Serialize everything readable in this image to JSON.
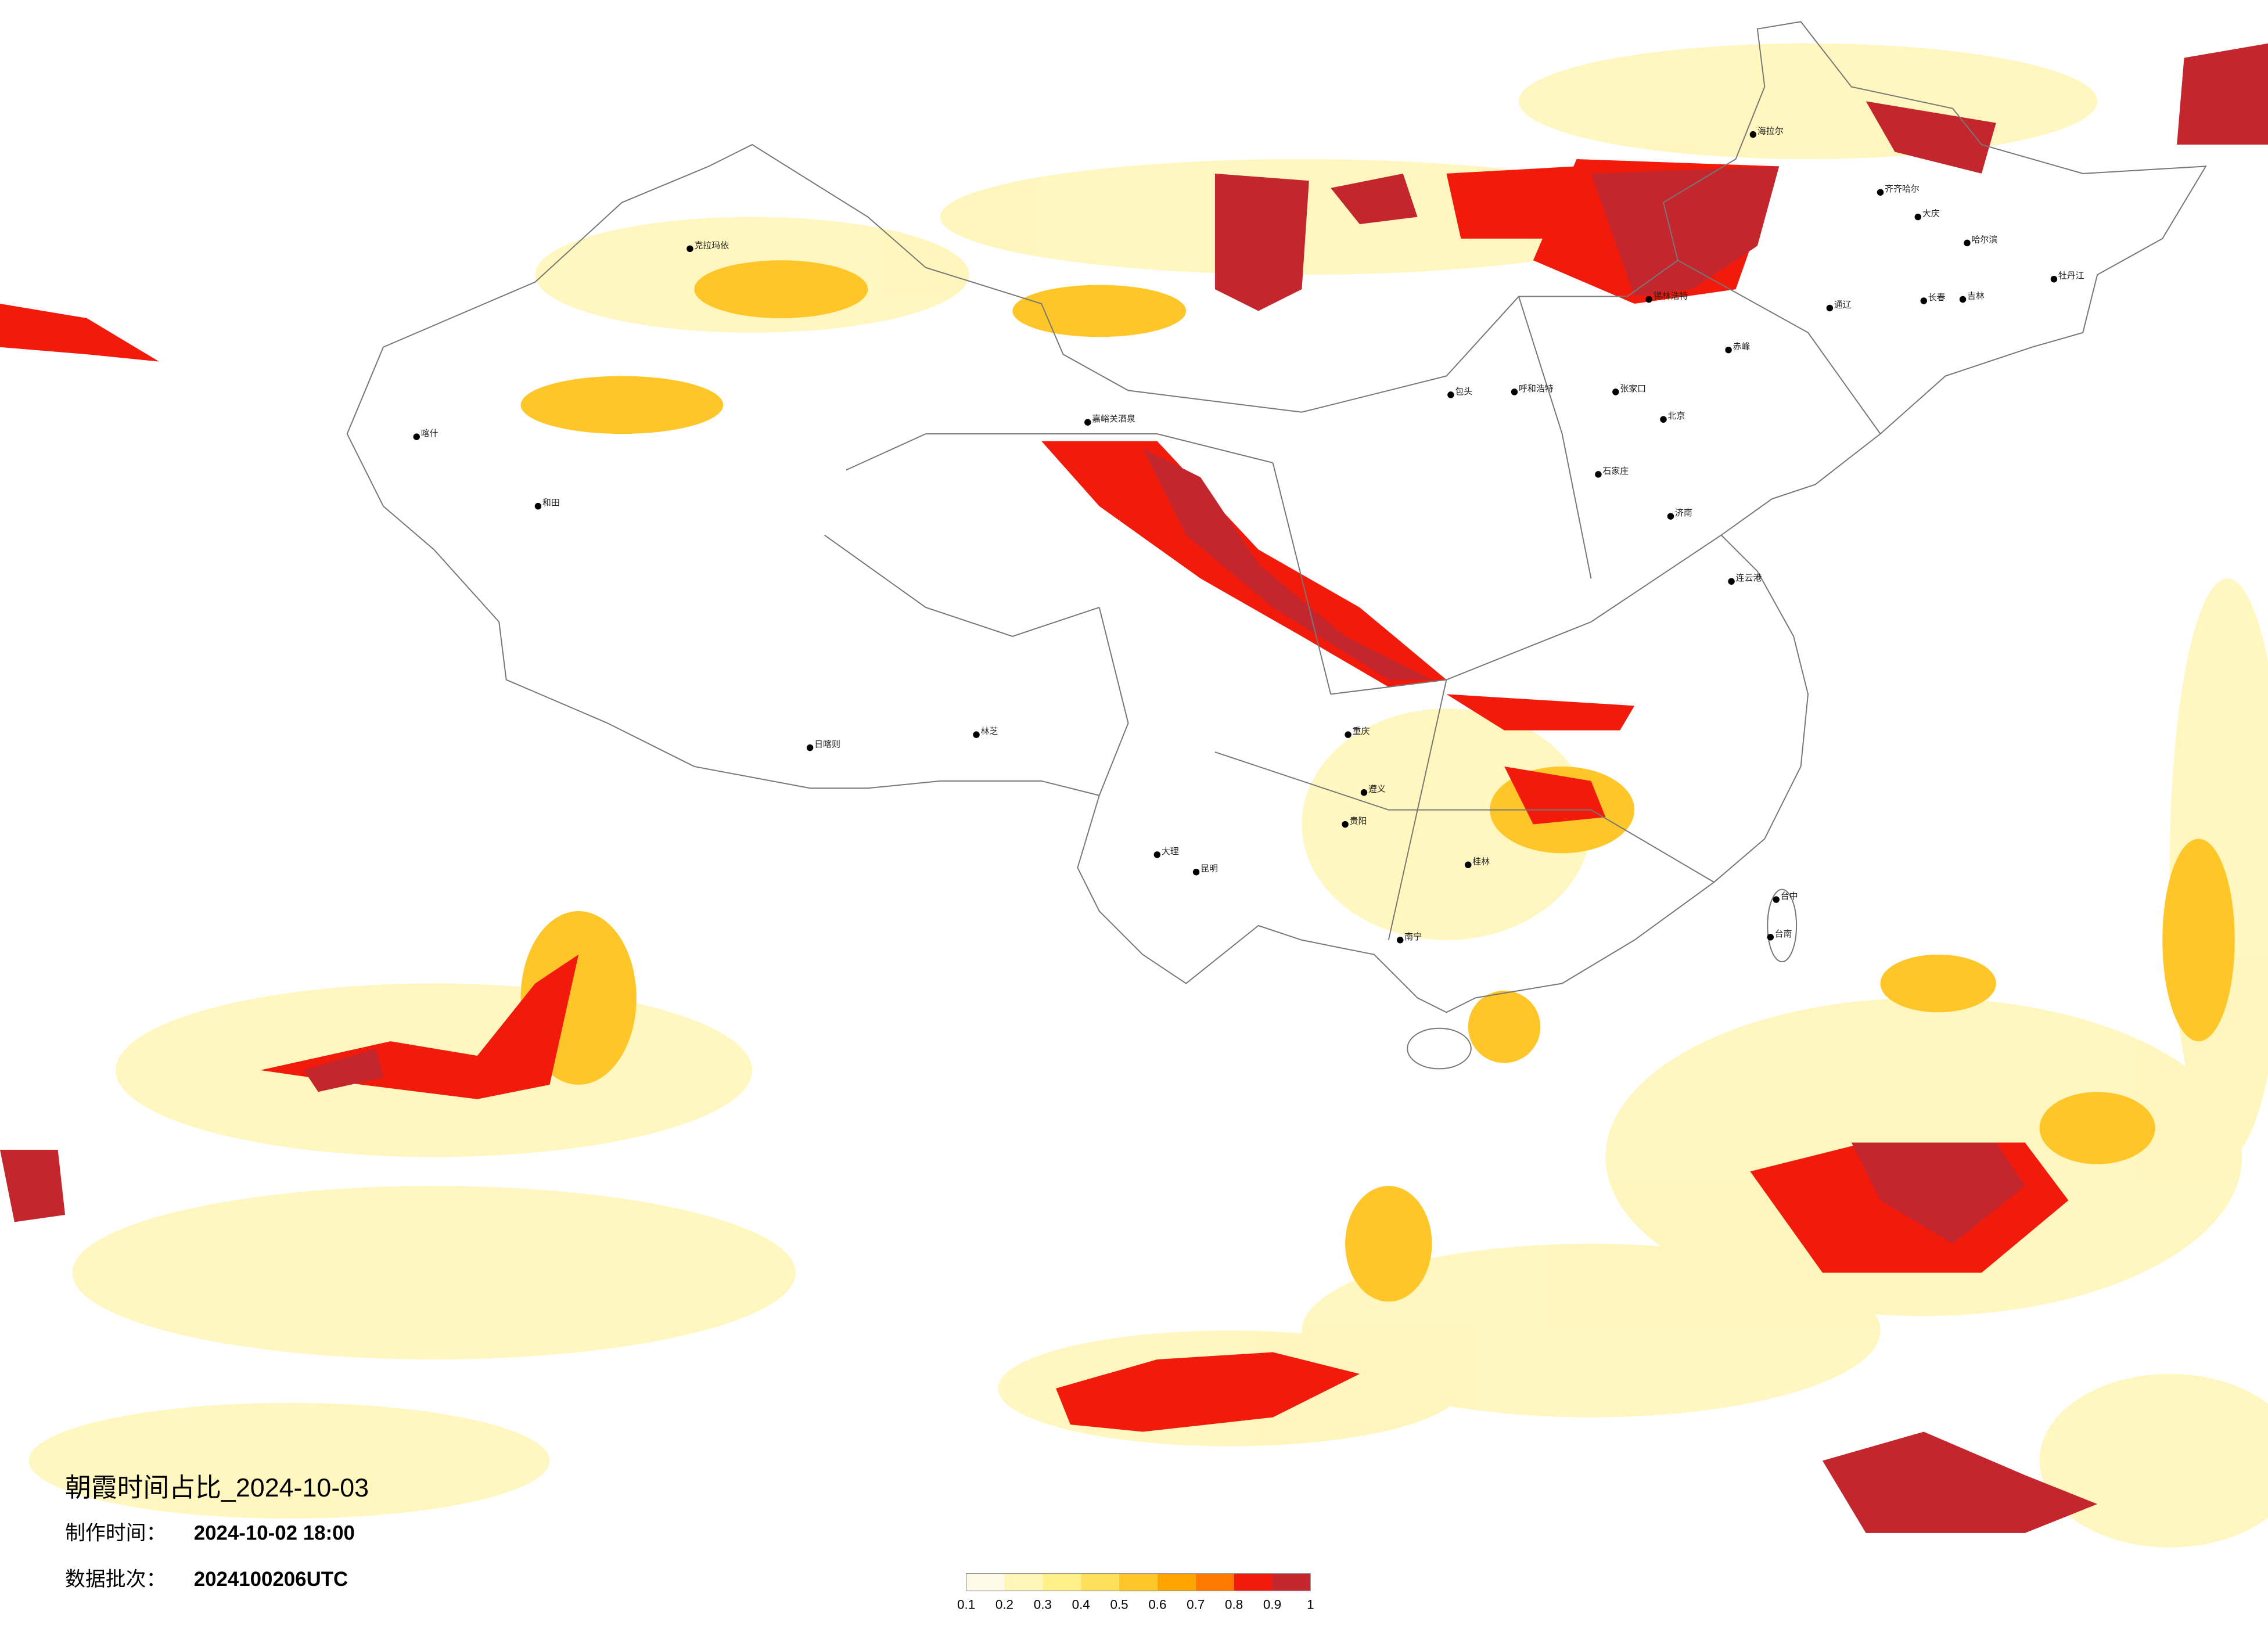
{
  "map": {
    "title": "朝霞时间占比_2024-10-03",
    "made_label": "制作时间：",
    "made_value": "2024-10-02 18:00",
    "batch_label": "数据批次：",
    "batch_value": "2024100206UTC",
    "colorbar": {
      "ticks": [
        0.1,
        0.2,
        0.3,
        0.4,
        0.5,
        0.6,
        0.7,
        0.8,
        0.9,
        1
      ],
      "colors": [
        "#fffbe8",
        "#fff6b8",
        "#fff08a",
        "#ffe05a",
        "#ffc62a",
        "#ffa500",
        "#ff7a00",
        "#f21a0a",
        "#c4262e"
      ]
    },
    "cities": [
      {
        "name": "克拉玛依"
      },
      {
        "name": "和田"
      },
      {
        "name": "喀什"
      },
      {
        "name": "日喀则"
      },
      {
        "name": "林芝"
      },
      {
        "name": "嘉峪关酒泉"
      },
      {
        "name": "石家庄"
      },
      {
        "name": "张家口"
      },
      {
        "name": "呼和浩特"
      },
      {
        "name": "包头"
      },
      {
        "name": "大庆"
      },
      {
        "name": "齐齐哈尔"
      },
      {
        "name": "牡丹江"
      },
      {
        "name": "吉林"
      },
      {
        "name": "长春"
      },
      {
        "name": "通辽"
      },
      {
        "name": "赤峰"
      },
      {
        "name": "锡林浩特"
      },
      {
        "name": "海拉尔"
      },
      {
        "name": "济南"
      },
      {
        "name": "连云港"
      },
      {
        "name": "贵阳"
      },
      {
        "name": "昆明"
      },
      {
        "name": "南宁"
      },
      {
        "name": "台中"
      },
      {
        "name": "台南"
      },
      {
        "name": "大理"
      },
      {
        "name": "重庆"
      },
      {
        "name": "遵义"
      },
      {
        "name": "桂林"
      },
      {
        "name": "北京"
      },
      {
        "name": "哈尔滨"
      }
    ]
  }
}
